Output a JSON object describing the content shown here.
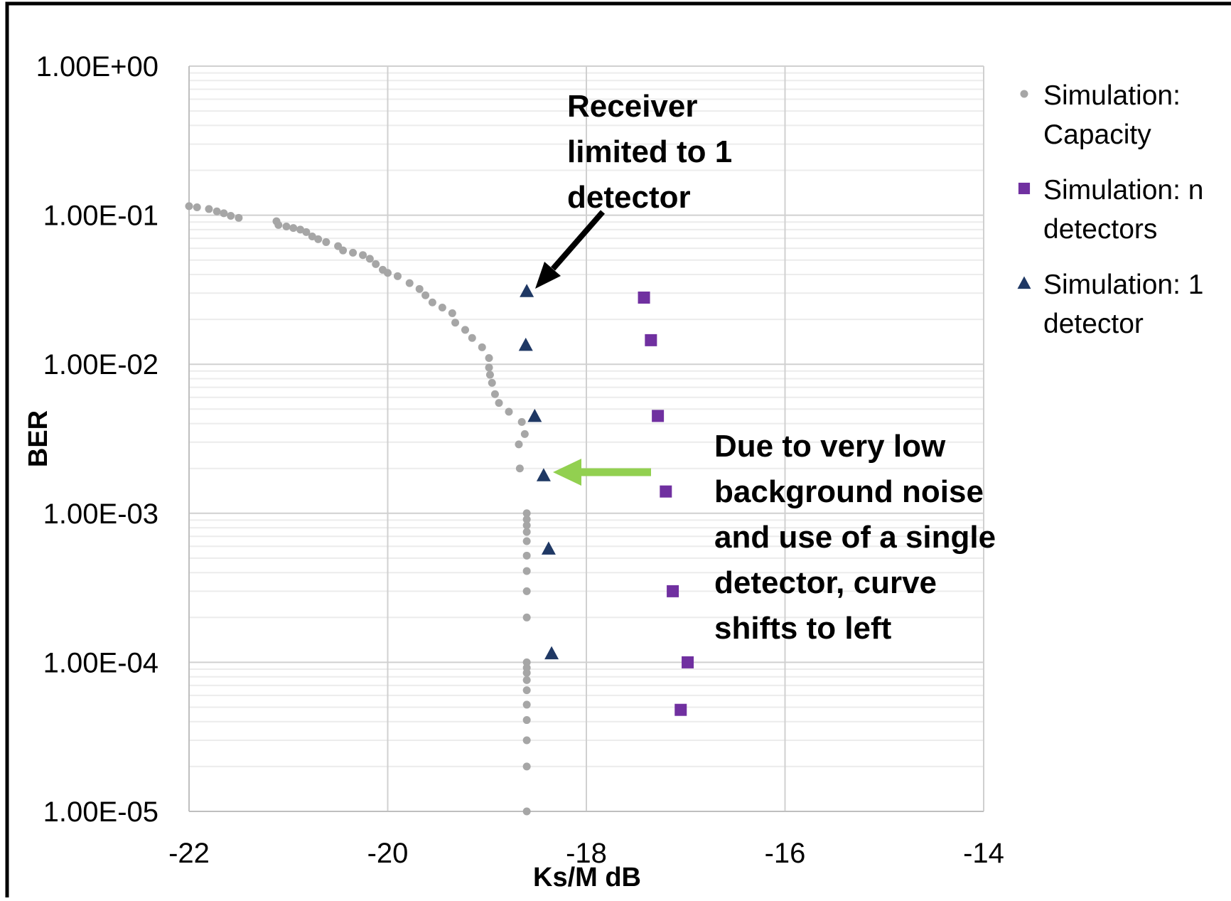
{
  "chart_data": {
    "type": "scatter",
    "title": "",
    "xlabel": "Ks/M dB",
    "ylabel": "BER",
    "xlim": [
      -22,
      -14
    ],
    "ylim": [
      1e-05,
      1
    ],
    "yscale": "log",
    "grid": true,
    "legend_position": "right",
    "x_ticks": [
      "-22",
      "-20",
      "-18",
      "-16",
      "-14"
    ],
    "y_ticks": [
      "1.00E+00",
      "1.00E-01",
      "1.00E-02",
      "1.00E-03",
      "1.00E-04",
      "1.00E-05"
    ],
    "series": [
      {
        "name_lines": [
          "Simulation:",
          "Capacity"
        ],
        "marker": "circle",
        "color": "#a6a6a6",
        "points": [
          [
            -22.0,
            0.115
          ],
          [
            -21.92,
            0.113
          ],
          [
            -21.8,
            0.11
          ],
          [
            -21.72,
            0.106
          ],
          [
            -21.65,
            0.103
          ],
          [
            -21.58,
            0.099
          ],
          [
            -21.5,
            0.096
          ],
          [
            -21.12,
            0.091
          ],
          [
            -21.1,
            0.086
          ],
          [
            -21.02,
            0.084
          ],
          [
            -20.95,
            0.082
          ],
          [
            -20.88,
            0.08
          ],
          [
            -20.82,
            0.077
          ],
          [
            -20.76,
            0.072
          ],
          [
            -20.7,
            0.069
          ],
          [
            -20.62,
            0.066
          ],
          [
            -20.5,
            0.062
          ],
          [
            -20.45,
            0.058
          ],
          [
            -20.35,
            0.056
          ],
          [
            -20.25,
            0.054
          ],
          [
            -20.18,
            0.051
          ],
          [
            -20.12,
            0.047
          ],
          [
            -20.05,
            0.043
          ],
          [
            -20.0,
            0.041
          ],
          [
            -19.9,
            0.039
          ],
          [
            -19.78,
            0.035
          ],
          [
            -19.68,
            0.032
          ],
          [
            -19.62,
            0.029
          ],
          [
            -19.55,
            0.026
          ],
          [
            -19.45,
            0.024
          ],
          [
            -19.35,
            0.022
          ],
          [
            -19.32,
            0.019
          ],
          [
            -19.22,
            0.017
          ],
          [
            -19.15,
            0.015
          ],
          [
            -19.05,
            0.013
          ],
          [
            -18.98,
            0.011
          ],
          [
            -18.98,
            0.0095
          ],
          [
            -18.97,
            0.0085
          ],
          [
            -18.95,
            0.0075
          ],
          [
            -18.92,
            0.0063
          ],
          [
            -18.88,
            0.0055
          ],
          [
            -18.78,
            0.0048
          ],
          [
            -18.65,
            0.0041
          ],
          [
            -18.62,
            0.0034
          ],
          [
            -18.68,
            0.0029
          ],
          [
            -18.67,
            0.002
          ],
          [
            -18.6,
            0.001
          ],
          [
            -18.6,
            0.00091
          ],
          [
            -18.6,
            0.00083
          ],
          [
            -18.6,
            0.00075
          ],
          [
            -18.6,
            0.00065
          ],
          [
            -18.6,
            0.00052
          ],
          [
            -18.6,
            0.00041
          ],
          [
            -18.6,
            0.0003
          ],
          [
            -18.6,
            0.0002
          ],
          [
            -18.6,
            0.0001
          ],
          [
            -18.6,
            9.2e-05
          ],
          [
            -18.6,
            8.5e-05
          ],
          [
            -18.6,
            7.6e-05
          ],
          [
            -18.6,
            6.5e-05
          ],
          [
            -18.6,
            5.2e-05
          ],
          [
            -18.6,
            4.1e-05
          ],
          [
            -18.6,
            3e-05
          ],
          [
            -18.6,
            2e-05
          ],
          [
            -18.6,
            1e-05
          ]
        ]
      },
      {
        "name_lines": [
          "Simulation: n",
          "detectors"
        ],
        "marker": "square",
        "color": "#7030a0",
        "points": [
          [
            -17.42,
            0.028
          ],
          [
            -17.35,
            0.0145
          ],
          [
            -17.28,
            0.0045
          ],
          [
            -17.2,
            0.0014
          ],
          [
            -17.13,
            0.0003
          ],
          [
            -16.98,
            0.0001
          ],
          [
            -17.05,
            4.8e-05
          ]
        ]
      },
      {
        "name_lines": [
          "Simulation: 1",
          "detector"
        ],
        "marker": "triangle",
        "color": "#1f3864",
        "points": [
          [
            -18.6,
            0.031
          ],
          [
            -18.61,
            0.0135
          ],
          [
            -18.52,
            0.0045
          ],
          [
            -18.43,
            0.0018
          ],
          [
            -18.38,
            0.00058
          ],
          [
            -18.35,
            0.000115
          ]
        ]
      }
    ],
    "annotations": [
      {
        "lines": [
          "Receiver",
          "limited to 1",
          "detector"
        ],
        "arrow_color": "#000000"
      },
      {
        "lines": [
          "Due to very low",
          "background noise",
          "and use of a single",
          "detector, curve",
          "shifts to left"
        ],
        "arrow_color": "#92d050"
      }
    ]
  }
}
